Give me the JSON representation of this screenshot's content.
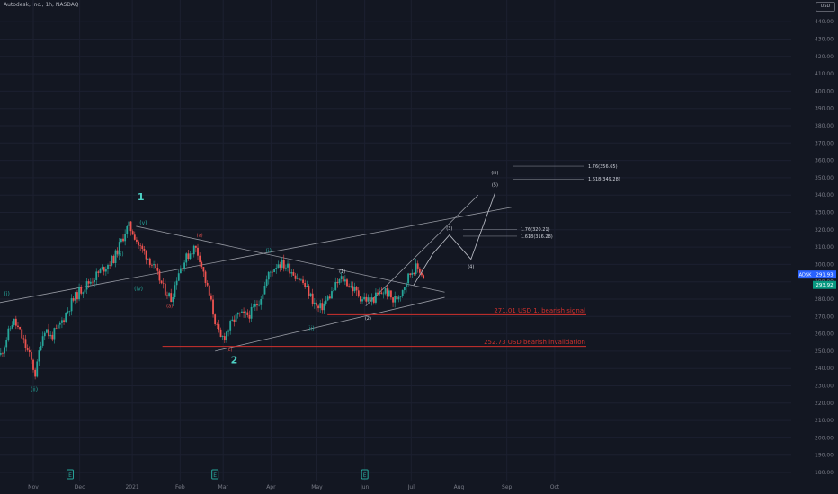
{
  "header": {
    "title": "Autodesk, Inc., 1h, NASDAQ",
    "currency": "USD"
  },
  "price_badge": {
    "symbol": "ADSK",
    "value": "291.93",
    "value2": "293.92"
  },
  "colors": {
    "background": "#131722",
    "up": "#26a69a",
    "down": "#ef5350",
    "wave_major": "#4dd0c4",
    "wave_minor": "#26a69a",
    "wave_red": "#ef5350",
    "wave_white": "#d1d4dc",
    "level_red": "#d0312d",
    "axis_text": "#787b86",
    "trendline": "#9598a1",
    "badge_blue": "#2962ff"
  },
  "chart_data": {
    "type": "line",
    "title": "Autodesk, Inc., 1h, NASDAQ",
    "ylim": [
      175,
      448
    ],
    "y_ticks": [
      180,
      190,
      200,
      210,
      220,
      230,
      240,
      250,
      260,
      270,
      280,
      290,
      300,
      310,
      320,
      330,
      340,
      350,
      360,
      370,
      380,
      390,
      400,
      410,
      420,
      430,
      440
    ],
    "x_ticks": [
      {
        "label": "Nov",
        "t": 0.0
      },
      {
        "label": "Dec",
        "t": 0.97
      },
      {
        "label": "2021",
        "t": 2.07
      },
      {
        "label": "Feb",
        "t": 3.07
      },
      {
        "label": "Mar",
        "t": 3.97
      },
      {
        "label": "Apr",
        "t": 4.97
      },
      {
        "label": "May",
        "t": 5.93
      },
      {
        "label": "Jun",
        "t": 6.93
      },
      {
        "label": "Jul",
        "t": 7.9
      },
      {
        "label": "Aug",
        "t": 8.9
      },
      {
        "label": "Sep",
        "t": 9.9
      },
      {
        "label": "Oct",
        "t": 10.9
      }
    ],
    "price_path": [
      [
        -0.68,
        248
      ],
      [
        -0.55,
        258
      ],
      [
        -0.42,
        268
      ],
      [
        -0.3,
        262
      ],
      [
        -0.15,
        252
      ],
      [
        -0.05,
        245
      ],
      [
        0.05,
        236
      ],
      [
        0.15,
        255
      ],
      [
        0.25,
        264
      ],
      [
        0.35,
        258
      ],
      [
        0.5,
        262
      ],
      [
        0.65,
        270
      ],
      [
        0.8,
        278
      ],
      [
        0.95,
        284
      ],
      [
        1.1,
        288
      ],
      [
        1.25,
        292
      ],
      [
        1.4,
        296
      ],
      [
        1.55,
        300
      ],
      [
        1.7,
        304
      ],
      [
        1.82,
        312
      ],
      [
        1.92,
        319
      ],
      [
        2.0,
        322
      ],
      [
        2.1,
        318
      ],
      [
        2.22,
        310
      ],
      [
        2.35,
        306
      ],
      [
        2.45,
        302
      ],
      [
        2.55,
        296
      ],
      [
        2.65,
        291
      ],
      [
        2.72,
        286
      ],
      [
        2.8,
        284
      ],
      [
        2.88,
        280
      ],
      [
        2.95,
        287
      ],
      [
        3.02,
        295
      ],
      [
        3.12,
        300
      ],
      [
        3.25,
        306
      ],
      [
        3.38,
        310
      ],
      [
        3.48,
        304
      ],
      [
        3.55,
        296
      ],
      [
        3.62,
        288
      ],
      [
        3.7,
        280
      ],
      [
        3.78,
        270
      ],
      [
        3.85,
        262
      ],
      [
        3.92,
        257
      ],
      [
        4.0,
        259
      ],
      [
        4.1,
        264
      ],
      [
        4.2,
        268
      ],
      [
        4.3,
        271
      ],
      [
        4.42,
        270
      ],
      [
        4.55,
        272
      ],
      [
        4.7,
        278
      ],
      [
        4.82,
        286
      ],
      [
        4.92,
        294
      ],
      [
        5.02,
        298
      ],
      [
        5.12,
        301
      ],
      [
        5.22,
        300
      ],
      [
        5.35,
        298
      ],
      [
        5.45,
        295
      ],
      [
        5.55,
        292
      ],
      [
        5.65,
        289
      ],
      [
        5.75,
        284
      ],
      [
        5.85,
        279
      ],
      [
        5.95,
        274
      ],
      [
        6.05,
        276
      ],
      [
        6.15,
        280
      ],
      [
        6.25,
        284
      ],
      [
        6.35,
        289
      ],
      [
        6.45,
        292
      ],
      [
        6.55,
        290
      ],
      [
        6.65,
        287
      ],
      [
        6.75,
        284
      ],
      [
        6.85,
        281
      ],
      [
        6.95,
        280
      ],
      [
        7.05,
        279
      ],
      [
        7.15,
        281
      ],
      [
        7.25,
        283
      ],
      [
        7.35,
        285
      ],
      [
        7.45,
        282
      ],
      [
        7.52,
        279
      ],
      [
        7.6,
        281
      ],
      [
        7.68,
        284
      ],
      [
        7.75,
        288
      ],
      [
        7.82,
        292
      ],
      [
        7.9,
        296
      ],
      [
        7.98,
        298
      ],
      [
        8.08,
        297
      ],
      [
        8.18,
        292
      ]
    ],
    "levels": [
      {
        "label": "271.01 USD 1. bearish signal",
        "value": 271.01
      },
      {
        "label": "252.73 USD bearish invalidation",
        "value": 252.73
      }
    ],
    "fib_labels": [
      {
        "label": "1.76(356.65)",
        "value": 356.65
      },
      {
        "label": "1.618(349.28)",
        "value": 349.28
      },
      {
        "label": "1.76(320.21)",
        "value": 320.21
      },
      {
        "label": "1.618(316.28)",
        "value": 316.28
      }
    ],
    "projection": [
      [
        7.95,
        288
      ],
      [
        8.35,
        306
      ],
      [
        8.7,
        317
      ],
      [
        9.15,
        303
      ],
      [
        9.65,
        341
      ]
    ],
    "wave_labels": [
      {
        "text": "1",
        "t": 2.25,
        "v": 337,
        "style": "major"
      },
      {
        "text": "2",
        "t": 4.2,
        "v": 243,
        "style": "major"
      },
      {
        "text": "(v)",
        "t": 2.3,
        "v": 323,
        "style": "minor"
      },
      {
        "text": "(iii)",
        "t": 1.8,
        "v": 305,
        "style": "minor"
      },
      {
        "text": "(iv)",
        "t": 2.2,
        "v": 285,
        "style": "minor"
      },
      {
        "text": "(i)",
        "t": -0.55,
        "v": 282,
        "style": "minor"
      },
      {
        "text": "(ii)",
        "t": 0.02,
        "v": 227,
        "style": "minor"
      },
      {
        "text": "(i)",
        "t": 4.92,
        "v": 307,
        "style": "minor"
      },
      {
        "text": "(ii)",
        "t": 5.8,
        "v": 262,
        "style": "minor"
      },
      {
        "text": "(a)",
        "t": 3.48,
        "v": 316,
        "style": "red"
      },
      {
        "text": "(a)",
        "t": 2.85,
        "v": 275,
        "style": "red"
      },
      {
        "text": "(c)",
        "t": 4.1,
        "v": 250,
        "style": "red"
      },
      {
        "text": "(1)",
        "t": 6.46,
        "v": 295,
        "style": "white"
      },
      {
        "text": "(2)",
        "t": 7.0,
        "v": 268,
        "style": "white"
      },
      {
        "text": "(3)",
        "t": 8.7,
        "v": 320,
        "style": "white"
      },
      {
        "text": "(4)",
        "t": 9.15,
        "v": 298,
        "style": "white"
      },
      {
        "text": "(5)",
        "t": 9.65,
        "v": 345,
        "style": "white"
      },
      {
        "text": "(iii)",
        "t": 9.65,
        "v": 352,
        "style": "white"
      }
    ],
    "trendlines": [
      [
        [
          -0.7,
          278
        ],
        [
          10.0,
          333
        ]
      ],
      [
        [
          2.15,
          322
        ],
        [
          8.6,
          284
        ]
      ],
      [
        [
          3.8,
          250
        ],
        [
          8.6,
          281
        ]
      ],
      [
        [
          6.95,
          276
        ],
        [
          9.3,
          340
        ]
      ]
    ],
    "event_markers": [
      0.77,
      3.8,
      6.93
    ]
  }
}
